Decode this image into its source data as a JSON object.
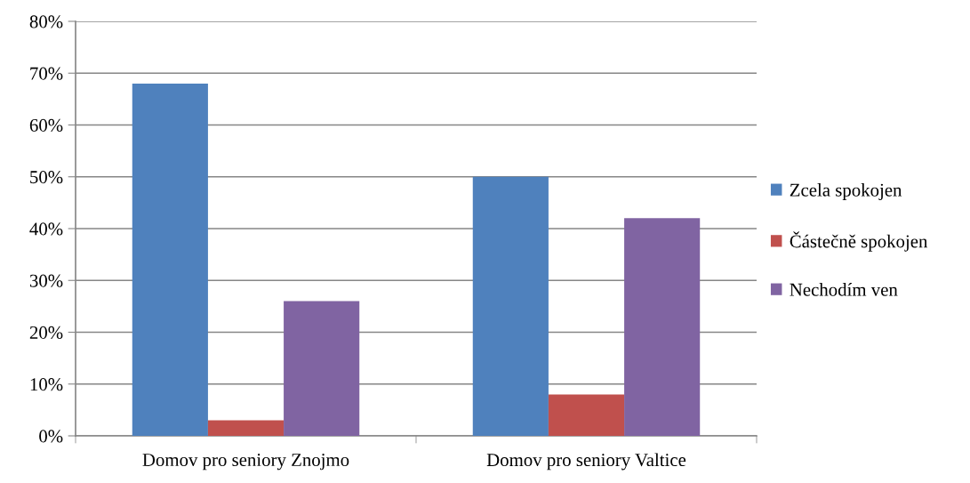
{
  "chart_data": {
    "type": "bar",
    "categories": [
      "Domov pro seniory Znojmo",
      "Domov pro seniory Valtice"
    ],
    "series": [
      {
        "name": "Zcela spokojen",
        "color": "#4f81bd",
        "values": [
          68,
          50
        ]
      },
      {
        "name": "Částečně spokojen",
        "color": "#c0504d",
        "values": [
          3,
          8
        ]
      },
      {
        "name": "Nechodím ven",
        "color": "#8064a2",
        "values": [
          26,
          42
        ]
      }
    ],
    "ylim": [
      0,
      80
    ],
    "yticks": [
      {
        "value": 0,
        "label": "0%"
      },
      {
        "value": 10,
        "label": "10%"
      },
      {
        "value": 20,
        "label": "20%"
      },
      {
        "value": 30,
        "label": "30%"
      },
      {
        "value": 40,
        "label": "40%"
      },
      {
        "value": 50,
        "label": "50%"
      },
      {
        "value": 60,
        "label": "60%"
      },
      {
        "value": 70,
        "label": "70%"
      },
      {
        "value": 80,
        "label": "80%"
      }
    ],
    "grid": "y",
    "legend": "right"
  }
}
